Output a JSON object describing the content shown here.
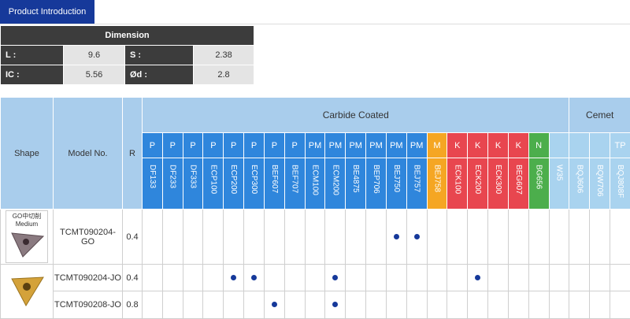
{
  "tab": "Product Introduction",
  "dimension": {
    "title": "Dimension",
    "rows": [
      [
        "L :",
        9.6,
        "S :",
        2.38
      ],
      [
        "IC :",
        5.56,
        "Ød :",
        2.8
      ]
    ]
  },
  "table": {
    "header": {
      "shape": "Shape",
      "model": "Model No.",
      "r": "R"
    },
    "groups": [
      {
        "label": "Carbide Coated",
        "columns": [
          {
            "class": "P",
            "grade": "DF133",
            "color": "#2f86dc"
          },
          {
            "class": "P",
            "grade": "DF233",
            "color": "#2f86dc"
          },
          {
            "class": "P",
            "grade": "DF333",
            "color": "#2f86dc"
          },
          {
            "class": "P",
            "grade": "ECP100",
            "color": "#2f86dc"
          },
          {
            "class": "P",
            "grade": "ECP200",
            "color": "#2f86dc"
          },
          {
            "class": "P",
            "grade": "ECP300",
            "color": "#2f86dc"
          },
          {
            "class": "P",
            "grade": "BEF607",
            "color": "#2f86dc"
          },
          {
            "class": "P",
            "grade": "BEF707",
            "color": "#2f86dc"
          },
          {
            "class": "PM",
            "grade": "ECM100",
            "color": "#2f86dc"
          },
          {
            "class": "PM",
            "grade": "ECM200",
            "color": "#2f86dc"
          },
          {
            "class": "PM",
            "grade": "BE4875",
            "color": "#2f86dc"
          },
          {
            "class": "PM",
            "grade": "BEP706",
            "color": "#2f86dc"
          },
          {
            "class": "PM",
            "grade": "BEJ750",
            "color": "#2f86dc"
          },
          {
            "class": "PM",
            "grade": "BEJ757",
            "color": "#2f86dc"
          },
          {
            "class": "M",
            "grade": "BEJ758",
            "color": "#f5a623"
          },
          {
            "class": "K",
            "grade": "ECK100",
            "color": "#e8464f"
          },
          {
            "class": "K",
            "grade": "ECK200",
            "color": "#e8464f"
          },
          {
            "class": "K",
            "grade": "ECK300",
            "color": "#e8464f"
          },
          {
            "class": "K",
            "grade": "BEG607",
            "color": "#e8464f"
          },
          {
            "class": "N",
            "grade": "BG656",
            "color": "#4cae4c"
          },
          {
            "class": null,
            "grade": "W35",
            "color": "#a9d3ef"
          }
        ]
      },
      {
        "label": "Cemet",
        "columns": [
          {
            "class": null,
            "grade": "BQJ606",
            "color": "#a9d3ef"
          },
          {
            "class": null,
            "grade": "BQW706",
            "color": "#a9d3ef"
          },
          {
            "class": "TP",
            "grade": "BQJ808F",
            "color": "#a9d3ef"
          }
        ]
      }
    ],
    "rows": [
      {
        "shape_label": "GO中切削",
        "shape_sublabel": "Medium",
        "model": "TCMT090204-GO",
        "r": 0.4,
        "marks": [
          false,
          false,
          false,
          false,
          false,
          false,
          false,
          false,
          false,
          false,
          false,
          false,
          true,
          true,
          false,
          false,
          false,
          false,
          false,
          false,
          false,
          false,
          false,
          false
        ]
      },
      {
        "model": "TCMT090204-JO",
        "r": 0.4,
        "marks": [
          false,
          false,
          false,
          false,
          true,
          true,
          false,
          false,
          false,
          true,
          false,
          false,
          false,
          false,
          false,
          false,
          true,
          false,
          false,
          false,
          false,
          false,
          false,
          false
        ]
      },
      {
        "model": "TCMT090208-JO",
        "r": 0.8,
        "marks": [
          false,
          false,
          false,
          false,
          false,
          false,
          true,
          false,
          false,
          true,
          false,
          false,
          false,
          false,
          false,
          false,
          false,
          false,
          false,
          false,
          false,
          false,
          false,
          false
        ]
      }
    ]
  }
}
